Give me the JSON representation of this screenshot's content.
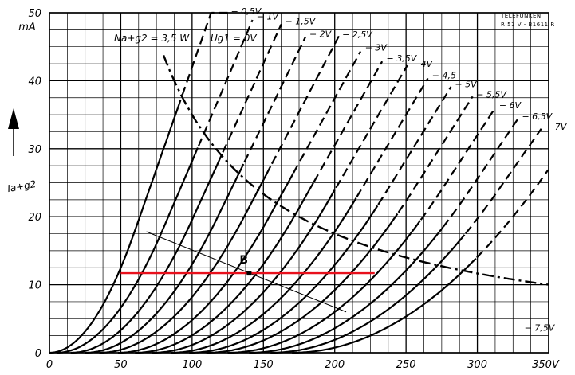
{
  "chart_data": {
    "type": "line",
    "title": "",
    "xlabel": "",
    "ylabel": "Ia+g2",
    "x_unit_label": "V",
    "y_unit_label": "mA",
    "xlim": [
      0,
      350
    ],
    "ylim": [
      0,
      50
    ],
    "x_ticks": [
      "0",
      "50",
      "100",
      "150",
      "200",
      "250",
      "300",
      "350V"
    ],
    "y_ticks": [
      "0",
      "10",
      "20",
      "30",
      "40",
      "50"
    ],
    "grid": true,
    "stamp": [
      "TELEFUNKEN",
      "R 51 V - B1611 R"
    ],
    "annotation_power": "Na+g2 = 3,5 W",
    "annotation_ug1": "Ug1 = 0V",
    "series": [
      {
        "name": "− 0,5V",
        "x_start": 0,
        "x_break": 60,
        "slope": 0.6,
        "x_end": 125
      },
      {
        "name": "− 1V",
        "x_start": 5,
        "x_break": 80,
        "slope": 0.49,
        "x_end": 143
      },
      {
        "name": "− 1,5V",
        "x_start": 15,
        "x_break": 100,
        "slope": 0.46,
        "x_end": 163
      },
      {
        "name": "− 2V",
        "x_start": 25,
        "x_break": 118,
        "slope": 0.43,
        "x_end": 180
      },
      {
        "name": "− 2,5V",
        "x_start": 35,
        "x_break": 138,
        "slope": 0.4,
        "x_end": 203
      },
      {
        "name": "− 3V",
        "x_start": 48,
        "x_break": 155,
        "slope": 0.38,
        "x_end": 219
      },
      {
        "name": "− 3,5V",
        "x_start": 60,
        "x_break": 175,
        "slope": 0.37,
        "x_end": 234
      },
      {
        "name": "− 4V",
        "x_start": 72,
        "x_break": 195,
        "slope": 0.36,
        "x_end": 251
      },
      {
        "name": "− 4,5",
        "x_start": 85,
        "x_break": 215,
        "slope": 0.35,
        "x_end": 266
      },
      {
        "name": "− 5V",
        "x_start": 98,
        "x_break": 235,
        "slope": 0.34,
        "x_end": 282
      },
      {
        "name": "− 5,5V",
        "x_start": 110,
        "x_break": 255,
        "slope": 0.33,
        "x_end": 297
      },
      {
        "name": "− 6V",
        "x_start": 125,
        "x_break": 275,
        "slope": 0.32,
        "x_end": 313
      },
      {
        "name": "− 6,5V",
        "x_start": 140,
        "x_break": 295,
        "slope": 0.31,
        "x_end": 329
      },
      {
        "name": "− 7V",
        "x_start": 155,
        "x_break": 315,
        "slope": 0.3,
        "x_end": 345
      },
      {
        "name": "− 7,5V",
        "x_start": 170,
        "x_break": 350,
        "slope": 0.3,
        "x_end": 350
      }
    ],
    "power_hyperbola": {
      "watts": 3.5,
      "x_from": 80,
      "x_to": 350
    },
    "load_line": {
      "x1": 68,
      "y1": 17.8,
      "x2": 208,
      "y2": 6.0
    },
    "operating_line": {
      "y": 11.7,
      "x_from": 50,
      "x_to": 228,
      "color": "#e8101c"
    },
    "operating_point": {
      "label": "B",
      "x": 140,
      "y": 11.7
    }
  }
}
